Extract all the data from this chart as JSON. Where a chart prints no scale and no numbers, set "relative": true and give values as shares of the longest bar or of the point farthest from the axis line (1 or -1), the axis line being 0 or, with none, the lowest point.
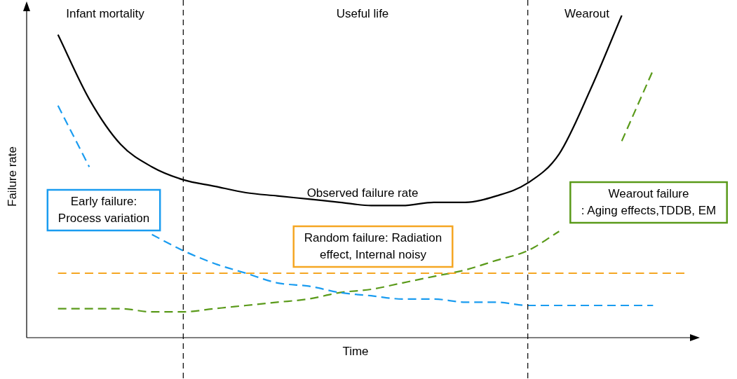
{
  "chart_data": {
    "type": "line",
    "relative": true,
    "xlabel": "Time",
    "ylabel": "Failure rate",
    "grid": false,
    "legend": false,
    "marker": "none",
    "categories": [
      null,
      null,
      null,
      null,
      null,
      null,
      null,
      null,
      null,
      null,
      null,
      null,
      null,
      null,
      null,
      null,
      null,
      null,
      null,
      null,
      null,
      null
    ],
    "annotations": [
      "Infant mortality",
      "Useful life",
      "Wearout"
    ],
    "series": [
      {
        "name": "Observed failure rate",
        "color": "#000000",
        "line_style": "solid",
        "values": [
          null,
          0.94,
          0.74,
          0.6,
          0.53,
          0.49,
          0.47,
          0.45,
          0.44,
          0.43,
          0.42,
          0.41,
          0.41,
          0.42,
          0.42,
          0.44,
          0.48,
          0.57,
          0.77,
          1,
          null,
          null
        ]
      },
      {
        "name": "Early failure:\nProcess variation",
        "color": "#1a9cf0",
        "line_style": "dashed",
        "values": [
          null,
          0.72,
          0.53,
          null,
          0.32,
          0.27,
          0.23,
          0.2,
          0.17,
          0.16,
          0.14,
          0.13,
          0.12,
          0.12,
          0.11,
          0.11,
          0.1,
          0.1,
          0.1,
          0.1,
          0.1,
          null
        ]
      },
      {
        "name": "Random failure: Radiation\neffect, Internal noisy",
        "color": "#f5a623",
        "line_style": "dashed",
        "values": [
          null,
          0.2,
          0.2,
          0.2,
          0.2,
          0.2,
          0.2,
          0.2,
          0.2,
          0.2,
          0.2,
          0.2,
          0.2,
          0.2,
          0.2,
          0.2,
          0.2,
          0.2,
          0.2,
          0.2,
          0.2,
          0.2
        ]
      },
      {
        "name": "Wearout failure\n: Aging effects,TDDB, EM",
        "color": "#5a9a1a",
        "line_style": "dashed",
        "values": [
          null,
          0.09,
          0.09,
          0.09,
          0.08,
          0.08,
          0.09,
          0.1,
          0.11,
          0.12,
          0.14,
          0.15,
          0.17,
          0.19,
          0.21,
          0.24,
          0.27,
          0.33,
          null,
          0.61,
          0.83,
          null
        ]
      }
    ]
  }
}
